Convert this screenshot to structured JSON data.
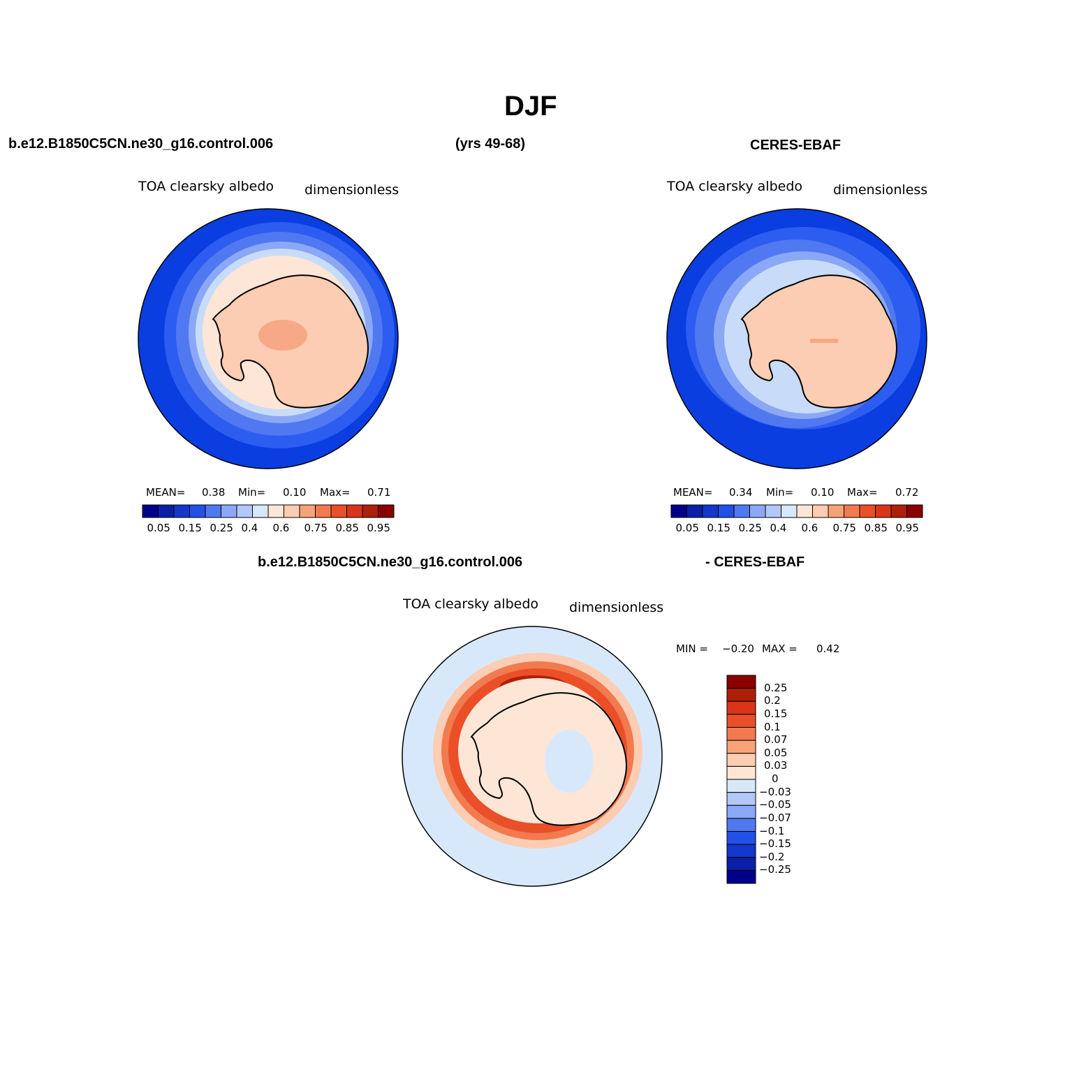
{
  "title": "DJF",
  "header": {
    "case_name": "b.e12.B1850C5CN.ne30_g16.control.006",
    "years": "(yrs 49-68)",
    "obs_name": "CERES-EBAF"
  },
  "panels": {
    "model": {
      "variable": "TOA clearsky albedo",
      "units": "dimensionless",
      "mean_label": "MEAN=",
      "mean": "0.38",
      "min_label": "Min=",
      "min": "0.10",
      "max_label": "Max=",
      "max": "0.71"
    },
    "obs": {
      "variable": "TOA clearsky albedo",
      "units": "dimensionless",
      "mean_label": "MEAN=",
      "mean": "0.34",
      "min_label": "Min=",
      "min": "0.10",
      "max_label": "Max=",
      "max": "0.72"
    },
    "diff": {
      "case_name": "b.e12.B1850C5CN.ne30_g16.control.006",
      "obs_name": "- CERES-EBAF",
      "variable": "TOA clearsky albedo",
      "units": "dimensionless",
      "min_label": "MIN =",
      "min": "−0.20",
      "max_label": "MAX =",
      "max": "0.42"
    }
  },
  "abs_colorbar": {
    "colors": [
      "#00008b",
      "#0a1fa6",
      "#1437cc",
      "#2350e6",
      "#5078f0",
      "#8aa8f5",
      "#b3c8f8",
      "#d8e8fb",
      "#fde6d6",
      "#fccdb2",
      "#f7a37a",
      "#f27a4f",
      "#ea4f28",
      "#d93516",
      "#b01f0a",
      "#8b0000"
    ],
    "labels": [
      "0.05",
      "0.15",
      "0.25",
      "0.4",
      "0.6",
      "0.75",
      "0.85",
      "0.95"
    ]
  },
  "diff_colorbar": {
    "colors_top_to_bottom": [
      "#8b0000",
      "#b01f0a",
      "#d93516",
      "#ea4f28",
      "#f27a4f",
      "#f7a37a",
      "#fccdb2",
      "#fde6d6",
      "#d8e8fb",
      "#b3c8f8",
      "#8aa8f5",
      "#5078f0",
      "#2350e6",
      "#1437cc",
      "#0a1fa6",
      "#00008b"
    ],
    "labels": [
      "0.25",
      "0.2",
      "0.15",
      "0.1",
      "0.07",
      "0.05",
      "0.03",
      "0",
      "−0.03",
      "−0.05",
      "−0.07",
      "−0.1",
      "−0.15",
      "−0.2",
      "−0.25"
    ]
  },
  "map_colors": {
    "ocean_dark": "#0a3ee0",
    "ocean_mid": "#2d5cf0",
    "ocean_light": "#7ea0f6",
    "ice_edge": "#c8dcfa",
    "near_white": "#fde6d6",
    "land": "#fccdb2",
    "land_dark": "#f7a886",
    "diff_bg": "#d8e8fb",
    "diff_ring": "#ea4f28",
    "diff_ring_dark": "#b01f0a"
  }
}
